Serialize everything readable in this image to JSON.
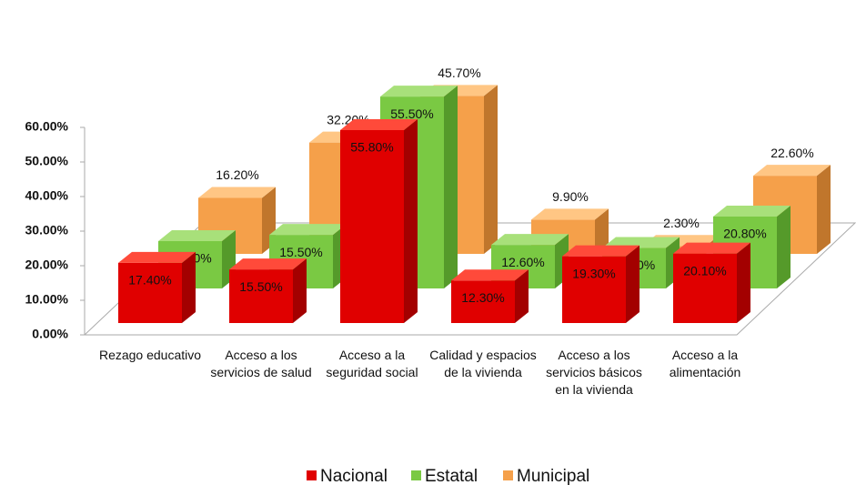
{
  "chart_data": {
    "type": "bar3d",
    "categories": [
      "Rezago educativo",
      "Acceso a los servicios de salud",
      "Acceso a la seguridad social",
      "Calidad y espacios de la vivienda",
      "Acceso a los servicios básicos en la vivienda",
      "Acceso a la alimentación"
    ],
    "series": [
      {
        "name": "Nacional",
        "color": "#e00000",
        "values": [
          17.4,
          15.5,
          55.8,
          12.3,
          19.3,
          20.1
        ],
        "value_labels": [
          "17.40%",
          "15.50%",
          "55.80%",
          "12.30%",
          "19.30%",
          "20.10%"
        ]
      },
      {
        "name": "Estatal",
        "color": "#7ac943",
        "values": [
          13.7,
          15.5,
          55.5,
          12.6,
          11.7,
          20.8
        ],
        "value_labels": [
          "13.70%",
          "15.50%",
          "55.50%",
          "12.60%",
          "11.70%",
          "20.80%"
        ]
      },
      {
        "name": "Municipal",
        "color": "#f5a04a",
        "values": [
          16.2,
          32.2,
          45.7,
          9.9,
          2.3,
          22.6
        ],
        "value_labels": [
          "16.20%",
          "32.20%",
          "45.70%",
          "9.90%",
          "2.30%",
          "22.60%"
        ]
      }
    ],
    "ylim": [
      0,
      60
    ],
    "yticks": [
      {
        "value": 0,
        "label": "0.00%"
      },
      {
        "value": 10,
        "label": "10.00%"
      },
      {
        "value": 20,
        "label": "20.00%"
      },
      {
        "value": 30,
        "label": "30.00%"
      },
      {
        "value": 40,
        "label": "40.00%"
      },
      {
        "value": 50,
        "label": "50.00%"
      },
      {
        "value": 60,
        "label": "60.00%"
      }
    ],
    "legend": "bottom"
  }
}
